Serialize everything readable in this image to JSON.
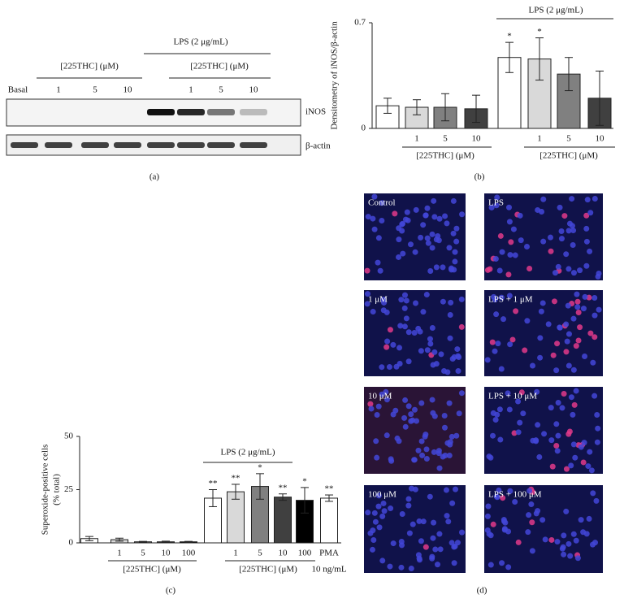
{
  "blot": {
    "bracket_label": "LPS (2 μg/mL)",
    "group_labels": [
      "[225THC] (μM)",
      "[225THC] (μM)"
    ],
    "lane_labels": [
      "Basal",
      "1",
      "5",
      "10",
      null,
      "1",
      "5",
      "10"
    ],
    "band_labels": [
      "iNOS",
      "β-actin"
    ]
  },
  "chart_data": [
    {
      "type": "bar",
      "ylabel": "Densitometry of iNOS/β-actin",
      "categories": [
        null,
        "1",
        "5",
        "10",
        null,
        "1",
        "5",
        "10"
      ],
      "values": [
        0.15,
        0.14,
        0.14,
        0.13,
        0.47,
        0.46,
        0.36,
        0.2
      ],
      "errors": [
        0.05,
        0.05,
        0.09,
        0.09,
        0.1,
        0.14,
        0.11,
        0.18
      ],
      "colors": [
        "#ffffff",
        "#d9d9d9",
        "#808080",
        "#404040",
        "#ffffff",
        "#d9d9d9",
        "#808080",
        "#404040"
      ],
      "annotations": [
        null,
        null,
        null,
        null,
        "*",
        "*",
        null,
        null
      ],
      "group_labels": [
        "[225THC] (μM)",
        "[225THC] (μM)"
      ],
      "bracket_label": "LPS (2 μg/mL)",
      "ylim": [
        0,
        0.7
      ],
      "yticks": [
        0,
        0.7
      ]
    },
    {
      "type": "bar",
      "ylabel": [
        "Superoxide-positive cells",
        "(% total)"
      ],
      "categories": [
        null,
        "1",
        "5",
        "10",
        "100",
        null,
        "1",
        "5",
        "10",
        "100",
        "PMA"
      ],
      "x_sublabel": "10 ng/mL",
      "values": [
        2,
        1.5,
        0.5,
        0.5,
        0.5,
        21,
        24,
        26.5,
        21.5,
        20,
        21
      ],
      "errors": [
        1,
        0.7,
        0.2,
        0.3,
        0.2,
        4,
        3.5,
        6,
        1.5,
        6,
        1.5
      ],
      "colors": [
        "#ffffff",
        "#d9d9d9",
        "#808080",
        "#404040",
        "#000000",
        "#ffffff",
        "#d9d9d9",
        "#808080",
        "#404040",
        "#000000",
        "#ffffff"
      ],
      "annotations": [
        null,
        null,
        null,
        null,
        null,
        "**",
        "**",
        "*",
        "**",
        "*",
        "**"
      ],
      "group_labels": [
        "[225THC] (μM)",
        "[225THC] (μM)"
      ],
      "bracket_label": "LPS (2 μg/mL)",
      "ylim": [
        0,
        50
      ],
      "yticks": [
        0,
        25,
        50
      ]
    }
  ],
  "micrographs": [
    "Control",
    "LPS",
    "1 μM",
    "LPS + 1 μM",
    "10 μM",
    "LPS + 10 μM",
    "100 μM",
    "LPS + 100 μM"
  ],
  "panel_labels": [
    "(a)",
    "(b)",
    "(c)",
    "(d)"
  ]
}
